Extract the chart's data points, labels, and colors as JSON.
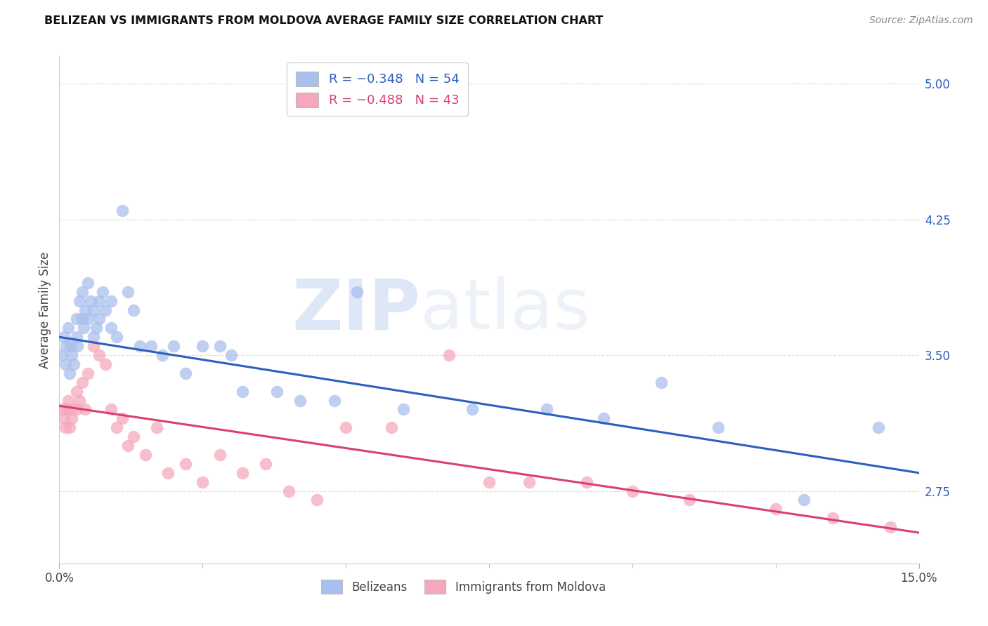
{
  "title": "BELIZEAN VS IMMIGRANTS FROM MOLDOVA AVERAGE FAMILY SIZE CORRELATION CHART",
  "source": "Source: ZipAtlas.com",
  "ylabel": "Average Family Size",
  "right_yticks": [
    2.75,
    3.5,
    4.25,
    5.0
  ],
  "xmin": 0.0,
  "xmax": 0.15,
  "ymin": 2.35,
  "ymax": 5.15,
  "watermark_text": "ZIP",
  "watermark_text2": "atlas",
  "belizean_color": "#a8c0ed",
  "moldova_color": "#f5a8bc",
  "belizean_line_color": "#2c5fbe",
  "moldova_line_color": "#d94070",
  "legend_label1": "R = −0.348   N = 54",
  "legend_label2": "R = −0.488   N = 43",
  "legend_title1": "Belizeans",
  "legend_title2": "Immigrants from Moldova",
  "belizean_x": [
    0.0005,
    0.0008,
    0.001,
    0.0012,
    0.0015,
    0.0018,
    0.002,
    0.0022,
    0.0025,
    0.003,
    0.003,
    0.0032,
    0.0035,
    0.004,
    0.004,
    0.0042,
    0.0045,
    0.005,
    0.005,
    0.0055,
    0.006,
    0.006,
    0.0065,
    0.007,
    0.007,
    0.0075,
    0.008,
    0.009,
    0.009,
    0.01,
    0.011,
    0.012,
    0.013,
    0.014,
    0.016,
    0.018,
    0.02,
    0.022,
    0.025,
    0.028,
    0.03,
    0.032,
    0.038,
    0.042,
    0.048,
    0.052,
    0.06,
    0.072,
    0.085,
    0.095,
    0.105,
    0.115,
    0.13,
    0.143
  ],
  "belizean_y": [
    3.5,
    3.6,
    3.45,
    3.55,
    3.65,
    3.4,
    3.55,
    3.5,
    3.45,
    3.7,
    3.6,
    3.55,
    3.8,
    3.85,
    3.7,
    3.65,
    3.75,
    3.9,
    3.7,
    3.8,
    3.75,
    3.6,
    3.65,
    3.8,
    3.7,
    3.85,
    3.75,
    3.8,
    3.65,
    3.6,
    4.3,
    3.85,
    3.75,
    3.55,
    3.55,
    3.5,
    3.55,
    3.4,
    3.55,
    3.55,
    3.5,
    3.3,
    3.3,
    3.25,
    3.25,
    3.85,
    3.2,
    3.2,
    3.2,
    3.15,
    3.35,
    3.1,
    2.7,
    3.1
  ],
  "moldova_x": [
    0.0005,
    0.0008,
    0.001,
    0.0012,
    0.0015,
    0.0018,
    0.002,
    0.0022,
    0.003,
    0.003,
    0.0035,
    0.004,
    0.0045,
    0.005,
    0.006,
    0.007,
    0.008,
    0.009,
    0.01,
    0.011,
    0.012,
    0.013,
    0.015,
    0.017,
    0.019,
    0.022,
    0.025,
    0.028,
    0.032,
    0.036,
    0.04,
    0.045,
    0.05,
    0.058,
    0.068,
    0.075,
    0.082,
    0.092,
    0.1,
    0.11,
    0.125,
    0.135,
    0.145
  ],
  "moldova_y": [
    3.2,
    3.15,
    3.1,
    3.2,
    3.25,
    3.1,
    3.2,
    3.15,
    3.3,
    3.2,
    3.25,
    3.35,
    3.2,
    3.4,
    3.55,
    3.5,
    3.45,
    3.2,
    3.1,
    3.15,
    3.0,
    3.05,
    2.95,
    3.1,
    2.85,
    2.9,
    2.8,
    2.95,
    2.85,
    2.9,
    2.75,
    2.7,
    3.1,
    3.1,
    3.5,
    2.8,
    2.8,
    2.8,
    2.75,
    2.7,
    2.65,
    2.6,
    2.55
  ]
}
